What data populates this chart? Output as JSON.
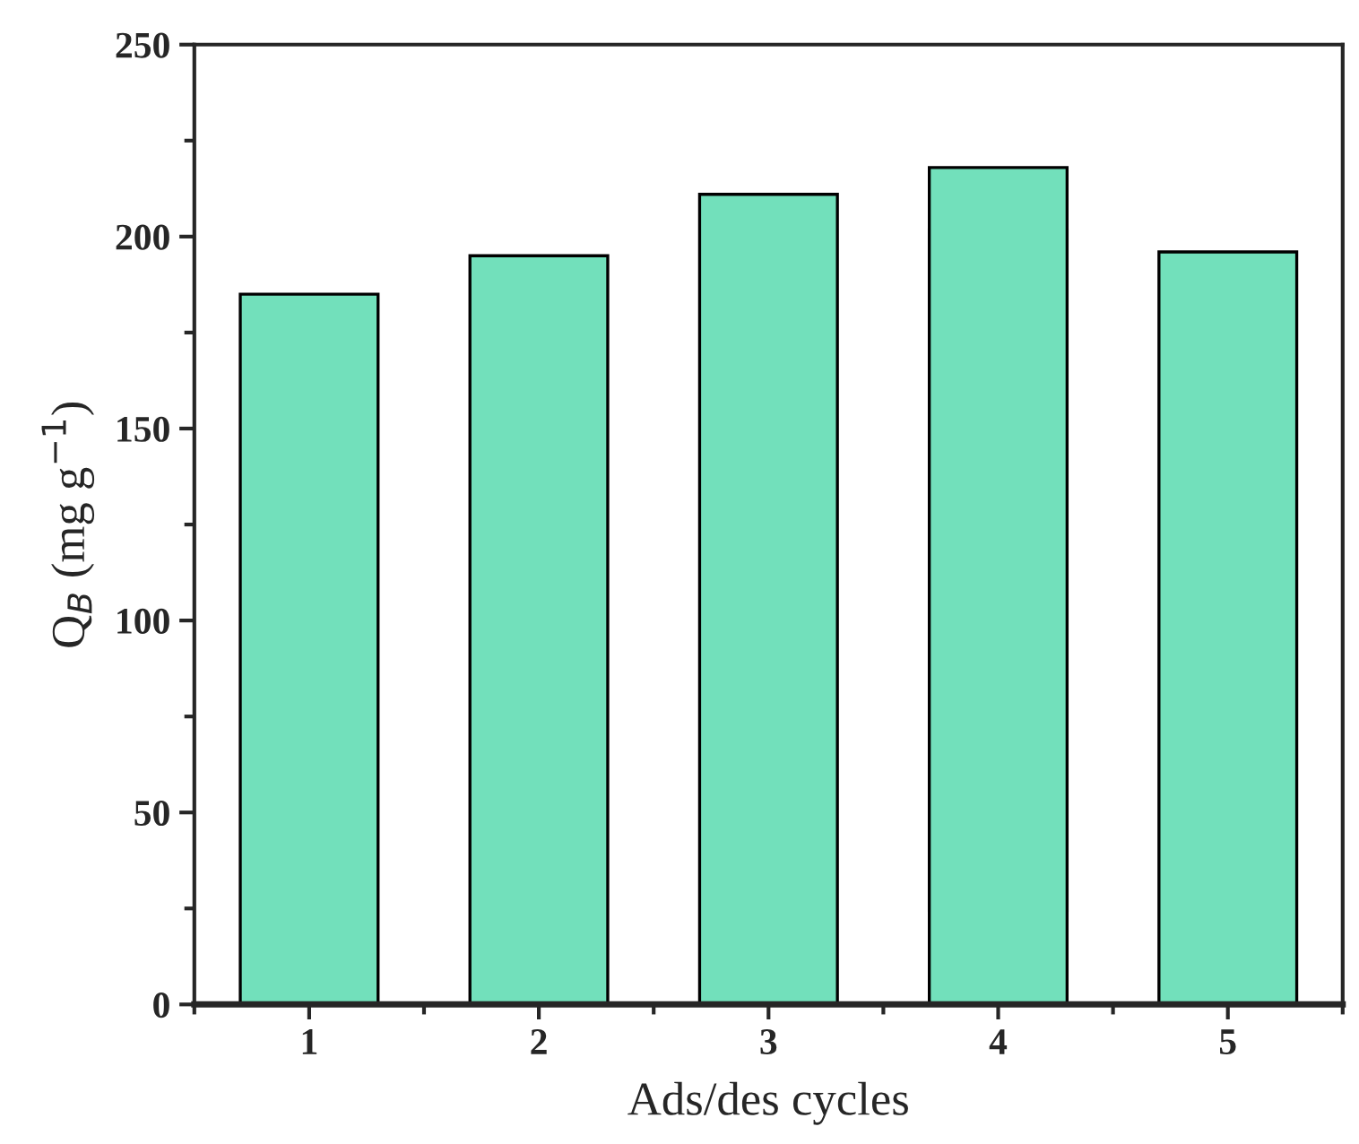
{
  "chart_data": {
    "type": "bar",
    "xlabel": "Ads/des cycles",
    "ylabel": "Q$_{B}$ (mg g$^{−1}$)",
    "categories": [
      "1",
      "2",
      "3",
      "4",
      "5"
    ],
    "values": [
      185,
      195,
      211,
      218,
      196
    ],
    "color": "#72e0bb",
    "ylim": [
      0,
      250
    ],
    "yticks": [
      0,
      50,
      100,
      150,
      200,
      250
    ],
    "grid": false,
    "legend": false
  }
}
